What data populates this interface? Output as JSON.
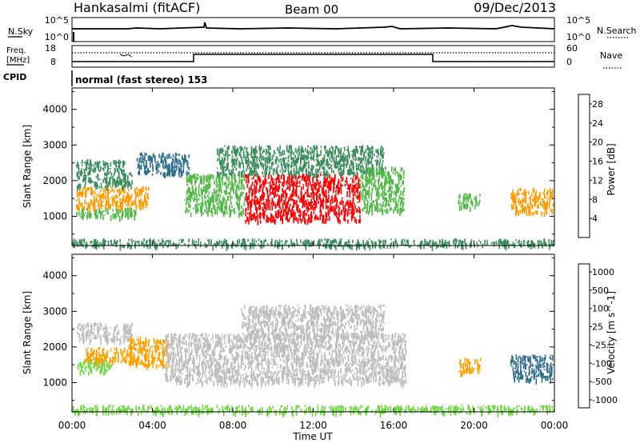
{
  "header": {
    "station": "Hankasalmi (fitACF)",
    "beam": "Beam 00",
    "date": "09/Dec/2013"
  },
  "strip_panels": {
    "nsky": {
      "label": "N.Sky",
      "left_ticks": [
        "10^5",
        "10^0"
      ]
    },
    "nsearch": {
      "label": "N.Search",
      "right_ticks": [
        "10^5",
        "10^0"
      ]
    },
    "freq": {
      "label_top": "Freq.",
      "label_bottom": "[MHz]",
      "left_ticks": [
        "18",
        "8"
      ]
    },
    "nave": {
      "label": "Nave",
      "right_ticks": [
        "60",
        "0"
      ]
    },
    "cpid": {
      "label": "CPID",
      "program": "normal (fast stereo) 153"
    }
  },
  "x_axis": {
    "title": "Time UT",
    "tick_labels": [
      "00:00",
      "04:00",
      "08:00",
      "12:00",
      "16:00",
      "20:00",
      "00:00"
    ],
    "tick_hours": [
      0,
      4,
      8,
      12,
      16,
      20,
      24
    ]
  },
  "colors": {
    "power_scale": [
      "#0000ff",
      "#1c3fa8",
      "#2f6e8a",
      "#3a8c5c",
      "#52b848",
      "#f0c800",
      "#ff9a00",
      "#ff5a00",
      "#ff0000"
    ],
    "velocity_scale": [
      "#ff0000",
      "#ff3a00",
      "#ff7a00",
      "#ffa000",
      "#b4b4b4",
      "#bdbdbd",
      "#6cd840",
      "#3a9a5a",
      "#2e6c8c",
      "#1c3fa8"
    ],
    "ground_scatter": "#bdbdbd"
  },
  "chart_data": [
    {
      "type": "heatmap",
      "title": "Power",
      "xlabel": "Time UT",
      "ylabel": "Slant Range [km]",
      "xlim": [
        0,
        24
      ],
      "ylim": [
        180,
        4600
      ],
      "y_ticks": [
        1000,
        2000,
        3000,
        4000
      ],
      "colorbar": {
        "label": "Power [dB]",
        "range": [
          0,
          30
        ],
        "tick_values": [
          4,
          8,
          12,
          16,
          20,
          24,
          28
        ],
        "tick_labels": [
          "4",
          "8",
          "12",
          "16",
          "20",
          "24",
          "28"
        ]
      },
      "regions": [
        {
          "x": [
            0.2,
            3.8
          ],
          "y": [
            1250,
            1850
          ],
          "value": 23
        },
        {
          "x": [
            0.2,
            3.0
          ],
          "y": [
            1850,
            2250
          ],
          "value": 12
        },
        {
          "x": [
            0.2,
            2.6
          ],
          "y": [
            2250,
            2600
          ],
          "value": 10
        },
        {
          "x": [
            0.2,
            3.2
          ],
          "y": [
            1000,
            1250
          ],
          "value": 16
        },
        {
          "x": [
            3.2,
            5.8
          ],
          "y": [
            2200,
            2800
          ],
          "value": 8
        },
        {
          "x": [
            5.6,
            8.6
          ],
          "y": [
            1100,
            2200
          ],
          "value": 14
        },
        {
          "x": [
            8.6,
            14.3
          ],
          "y": [
            900,
            2200
          ],
          "value": 27
        },
        {
          "x": [
            7.2,
            15.5
          ],
          "y": [
            2200,
            3000
          ],
          "value": 10
        },
        {
          "x": [
            14.3,
            16.5
          ],
          "y": [
            1150,
            2400
          ],
          "value": 15
        },
        {
          "x": [
            19.2,
            20.3
          ],
          "y": [
            1250,
            1650
          ],
          "value": 14
        },
        {
          "x": [
            21.8,
            23.9
          ],
          "y": [
            1100,
            1800
          ],
          "value": 20
        },
        {
          "x": [
            0.0,
            24.0
          ],
          "y": [
            180,
            380
          ],
          "value": 12
        }
      ]
    },
    {
      "type": "heatmap",
      "title": "Velocity",
      "xlabel": "Time UT",
      "ylabel": "Slant Range [km]",
      "xlim": [
        0,
        24
      ],
      "ylim": [
        180,
        4600
      ],
      "y_ticks": [
        1000,
        2000,
        3000,
        4000
      ],
      "colorbar": {
        "label": "Velocity [m s^-1]",
        "tick_labels": [
          "-1000",
          "-500",
          "-100",
          "-25",
          "25",
          "100",
          "500",
          "1000"
        ]
      },
      "ground_scatter": "grey",
      "regions": [
        {
          "x": [
            0.2,
            2.0
          ],
          "y": [
            1300,
            1700
          ],
          "value": "100"
        },
        {
          "x": [
            0.6,
            3.2
          ],
          "y": [
            1600,
            2000
          ],
          "value": "-100"
        },
        {
          "x": [
            0.2,
            3.0
          ],
          "y": [
            2200,
            2700
          ],
          "value": "ground"
        },
        {
          "x": [
            2.8,
            4.8
          ],
          "y": [
            1500,
            2300
          ],
          "value": "-100"
        },
        {
          "x": [
            4.6,
            16.6
          ],
          "y": [
            1000,
            2400
          ],
          "value": "ground"
        },
        {
          "x": [
            8.4,
            15.5
          ],
          "y": [
            2300,
            3200
          ],
          "value": "ground"
        },
        {
          "x": [
            19.2,
            20.3
          ],
          "y": [
            1300,
            1700
          ],
          "value": "-100"
        },
        {
          "x": [
            21.8,
            23.9
          ],
          "y": [
            1100,
            1800
          ],
          "value": "500"
        },
        {
          "x": [
            0.0,
            24.0
          ],
          "y": [
            180,
            380
          ],
          "value": "100"
        }
      ]
    }
  ]
}
